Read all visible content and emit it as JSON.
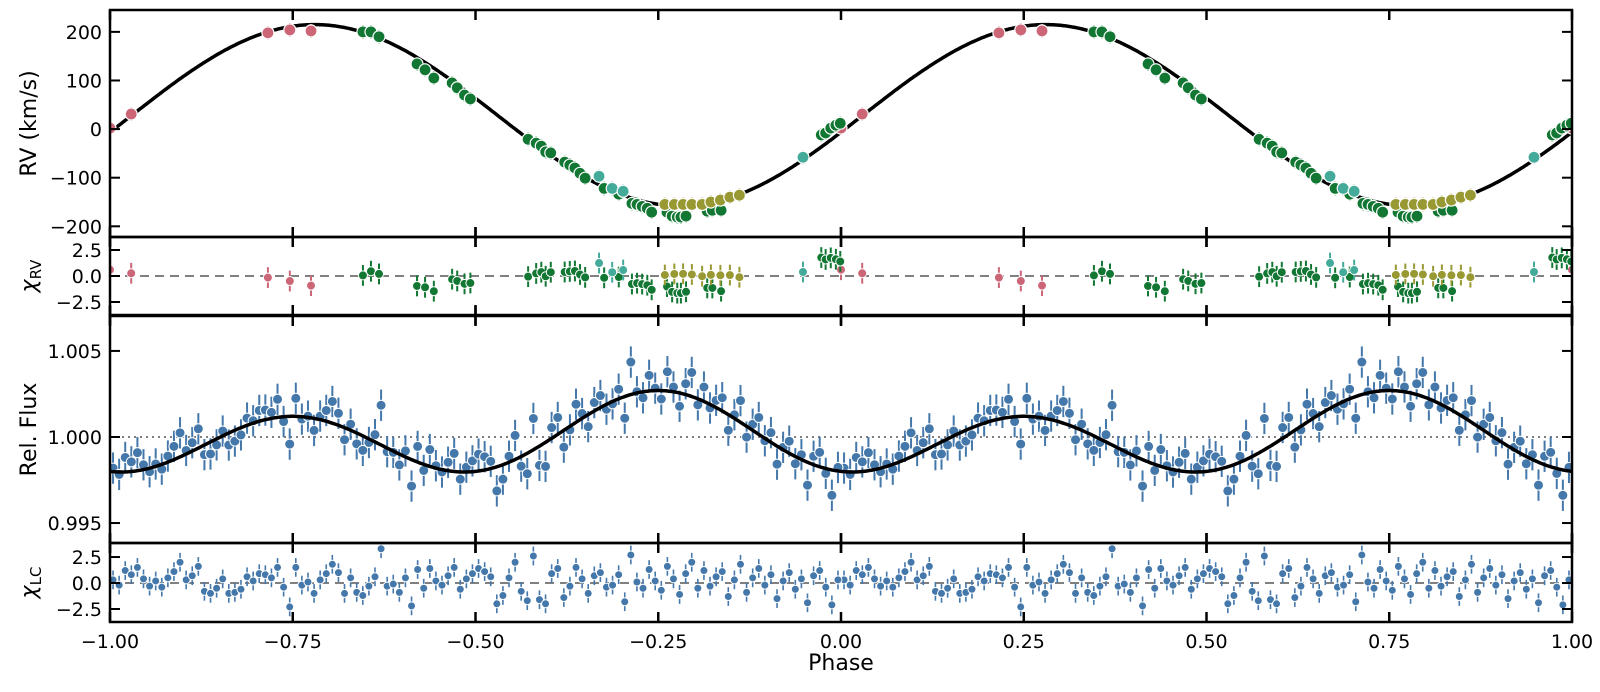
{
  "colors": {
    "inst_pink": "#cc6677",
    "inst_green": "#117733",
    "inst_teal": "#44aa99",
    "inst_olive": "#999933",
    "lc_blue": "#4477aa",
    "model": "#000000",
    "zero_line": "#808080"
  },
  "x_axis": {
    "label": "Phase",
    "xlim": [
      -1,
      1
    ],
    "ticks": [
      -1,
      -0.75,
      -0.5,
      -0.25,
      0,
      0.25,
      0.5,
      0.75,
      1
    ],
    "tick_labels": [
      "−1.00",
      "−0.75",
      "−0.50",
      "−0.25",
      "0.00",
      "0.25",
      "0.50",
      "0.75",
      "1.00"
    ]
  },
  "chart_data": [
    {
      "type": "scatter",
      "panel": "rv",
      "ylabel": "RV (km/s)",
      "ylim": [
        -222,
        245
      ],
      "yticks": [
        -200,
        -100,
        0,
        100,
        200
      ],
      "ytick_labels": [
        "−200",
        "−100",
        "0",
        "100",
        "200"
      ],
      "model": {
        "kind": "sinusoid",
        "gamma": 28.5,
        "K": 186.5,
        "phase0": 0.03
      },
      "error_kms": 14,
      "series": [
        {
          "color": "#cc6677",
          "points": [
            [
              0.0,
              2
            ],
            [
              0.029,
              31
            ],
            [
              0.216,
              198
            ],
            [
              0.246,
              204
            ],
            [
              0.275,
              202
            ]
          ]
        },
        {
          "color": "#117733",
          "points": [
            [
              0.346,
              200
            ],
            [
              0.357,
              200
            ],
            [
              0.368,
              190
            ],
            [
              0.42,
              134
            ],
            [
              0.431,
              122
            ],
            [
              0.443,
              105
            ],
            [
              0.468,
              95
            ],
            [
              0.475,
              85
            ],
            [
              0.485,
              70
            ],
            [
              0.493,
              62
            ],
            [
              0.572,
              -21
            ],
            [
              0.583,
              -29
            ],
            [
              0.59,
              -35
            ],
            [
              0.596,
              -47
            ],
            [
              0.603,
              -49
            ],
            [
              0.622,
              -68
            ],
            [
              0.629,
              -74
            ],
            [
              0.636,
              -80
            ],
            [
              0.643,
              -91
            ],
            [
              0.65,
              -101
            ],
            [
              0.676,
              -122
            ],
            [
              0.696,
              -134
            ],
            [
              0.714,
              -153
            ],
            [
              0.721,
              -155
            ],
            [
              0.728,
              -159
            ],
            [
              0.735,
              -163
            ],
            [
              0.741,
              -171
            ],
            [
              0.762,
              -171
            ],
            [
              0.769,
              -179
            ],
            [
              0.776,
              -181
            ],
            [
              0.781,
              -181
            ],
            [
              0.788,
              -179
            ],
            [
              0.817,
              -169
            ],
            [
              0.824,
              -167
            ],
            [
              0.836,
              -167
            ],
            [
              0.973,
              -12
            ],
            [
              0.979,
              -8
            ],
            [
              0.986,
              2
            ],
            [
              0.993,
              8
            ],
            [
              0.999,
              12
            ]
          ]
        },
        {
          "color": "#44aa99",
          "points": [
            [
              0.669,
              -97
            ],
            [
              0.687,
              -122
            ],
            [
              0.702,
              -128
            ],
            [
              0.948,
              -58
            ]
          ]
        },
        {
          "color": "#999933",
          "points": [
            [
              0.759,
              -155
            ],
            [
              0.772,
              -155
            ],
            [
              0.784,
              -155
            ],
            [
              0.796,
              -155
            ],
            [
              0.81,
              -155
            ],
            [
              0.822,
              -150
            ],
            [
              0.835,
              -146
            ],
            [
              0.848,
              -140
            ],
            [
              0.861,
              -136
            ]
          ]
        }
      ]
    },
    {
      "type": "scatter",
      "panel": "rv_resid",
      "ylabel": "χ",
      "ylabel_sub": "RV",
      "ylim": [
        -3.75,
        3.75
      ],
      "yticks": [
        -2.5,
        0,
        2.5
      ],
      "ytick_labels": [
        "−2.5",
        "0.0",
        "2.5"
      ]
    },
    {
      "type": "scatter",
      "panel": "lc",
      "ylabel": "Rel. Flux",
      "ylim": [
        0.99384,
        1.00703
      ],
      "yticks": [
        0.995,
        1.0,
        1.005
      ],
      "ytick_labels": [
        "0.995",
        "1.000",
        "1.005"
      ],
      "reference_level": 1.0,
      "model": {
        "kind": "harmonic",
        "c": 0.999975,
        "A": 0.001975,
        "B": -0.00075
      },
      "sigma": 0.0007,
      "n_points": 120,
      "chi": [
        0.3,
        -0.2,
        1.2,
        0.8,
        1.5,
        0.4,
        -0.3,
        0.2,
        -0.4,
        0.5,
        1.1,
        2.0,
        0.3,
        0.7,
        1.6,
        -0.8,
        -1.0,
        -0.5,
        0.4,
        -1.0,
        -0.9,
        -0.6,
        0.6,
        0.2,
        0.9,
        0.8,
        0.5,
        1.5,
        -0.4,
        -2.3,
        1.5,
        -0.2,
        0.1,
        -1.0,
        0.3,
        0.9,
        1.8,
        1.0,
        -1.0,
        0.5,
        -0.9,
        -1.2,
        -0.3,
        0.6,
        3.3,
        -0.3,
        -0.1,
        -0.9,
        0.5,
        -2.2,
        1.3,
        -0.5,
        1.4,
        0.2,
        -0.2,
        0.7,
        1.5,
        -0.6,
        0.4,
        0.9,
        1.4,
        1.1,
        0.6,
        -2.0,
        -1.2,
        0.5,
        2.0,
        -0.8,
        -1.7,
        2.6,
        -1.6,
        -2.0,
        0.9,
        1.4,
        -1.4,
        -0.3,
        1.5,
        0.4,
        -1.0,
        0.7,
        1.0,
        -0.4,
        -0.2,
        0.8,
        -1.8,
        2.7,
        0.1,
        -0.5,
        1.3,
        0.2,
        -0.7,
        1.6,
        0.4,
        -1.1,
        0.9,
        2.0,
        -0.5,
        1.2,
        -0.3,
        0.6,
        1.1,
        -1.3,
        0.3,
        1.8,
        -0.9,
        0.5,
        1.4,
        -0.2,
        0.8,
        -1.5,
        0.2,
        1.0,
        -0.6,
        0.4,
        -1.9,
        0.7,
        1.2,
        -0.4,
        -2.1,
        0.3
      ]
    },
    {
      "type": "scatter",
      "panel": "lc_resid",
      "ylabel": "χ",
      "ylabel_sub": "LC",
      "ylim": [
        -3.75,
        3.85
      ],
      "yticks": [
        -2.5,
        0,
        2.5
      ],
      "ytick_labels": [
        "−2.5",
        "0.0",
        "2.5"
      ]
    }
  ]
}
